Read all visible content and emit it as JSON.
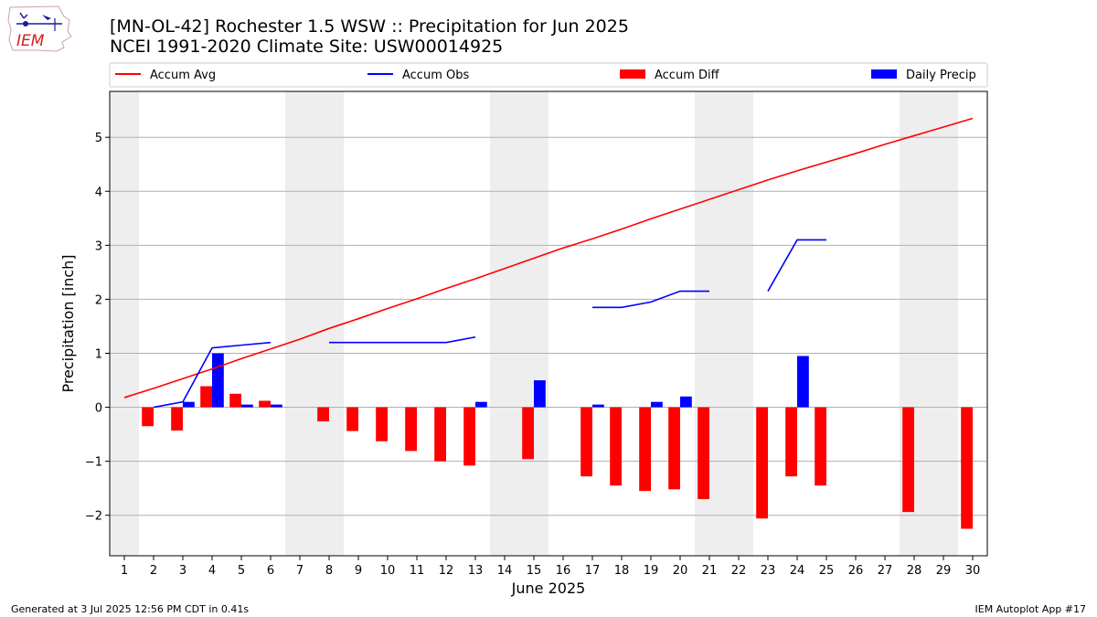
{
  "header": {
    "line1": "[MN-OL-42] Rochester 1.5 WSW :: Precipitation for Jun 2025",
    "line2": "NCEI 1991-2020 Climate Site: USW00014925"
  },
  "logo": {
    "text": "IEM"
  },
  "footer": {
    "generated": "Generated at 3 Jul 2025 12:56 PM CDT in 0.41s",
    "app": "IEM Autoplot App #17"
  },
  "chart_data": {
    "type": "bar",
    "xlabel": "June 2025",
    "ylabel": "Precipitation [inch]",
    "xlim": [
      0.5,
      30.5
    ],
    "ylim": [
      -2.75,
      5.85
    ],
    "yticks": [
      -2,
      -1,
      0,
      1,
      2,
      3,
      4,
      5
    ],
    "ytick_labels": [
      "−2",
      "−1",
      "0",
      "1",
      "2",
      "3",
      "4",
      "5"
    ],
    "days": [
      1,
      2,
      3,
      4,
      5,
      6,
      7,
      8,
      9,
      10,
      11,
      12,
      13,
      14,
      15,
      16,
      17,
      18,
      19,
      20,
      21,
      22,
      23,
      24,
      25,
      26,
      27,
      28,
      29,
      30
    ],
    "grid": true,
    "legend_position": "top",
    "weekend_shading": [
      [
        0.5,
        1.5
      ],
      [
        6.5,
        8.5
      ],
      [
        13.5,
        15.5
      ],
      [
        20.5,
        22.5
      ],
      [
        27.5,
        29.5
      ]
    ],
    "colors": {
      "avg": "#ff0000",
      "obs": "#0000ff",
      "diff": "#ff0000",
      "daily": "#0000ff",
      "shade": "#eeeeee",
      "grid": "#b0b0b0"
    },
    "legend": [
      {
        "key": "avg",
        "label": "Accum Avg",
        "kind": "line"
      },
      {
        "key": "obs",
        "label": "Accum Obs",
        "kind": "line"
      },
      {
        "key": "diff",
        "label": "Accum Diff",
        "kind": "bar"
      },
      {
        "key": "daily",
        "label": "Daily Precip",
        "kind": "bar"
      }
    ],
    "accum_avg": [
      0.18,
      0.35,
      0.53,
      0.71,
      0.9,
      1.08,
      1.26,
      1.46,
      1.64,
      1.83,
      2.01,
      2.2,
      2.38,
      2.57,
      2.76,
      2.95,
      3.12,
      3.3,
      3.49,
      3.67,
      3.85,
      4.03,
      4.21,
      4.38,
      4.54,
      4.7,
      4.87,
      5.03,
      5.19,
      5.35
    ],
    "accum_obs_segments": [
      [
        [
          2,
          0.0
        ],
        [
          3,
          0.1
        ],
        [
          4,
          1.1
        ],
        [
          5,
          1.15
        ],
        [
          6,
          1.2
        ]
      ],
      [
        [
          8,
          1.2
        ],
        [
          9,
          1.2
        ],
        [
          10,
          1.2
        ],
        [
          11,
          1.2
        ],
        [
          12,
          1.2
        ],
        [
          13,
          1.3
        ]
      ],
      [
        [
          17,
          1.85
        ],
        [
          18,
          1.85
        ],
        [
          19,
          1.95
        ],
        [
          20,
          2.15
        ],
        [
          21,
          2.15
        ]
      ],
      [
        [
          23,
          2.15
        ],
        [
          24,
          3.1
        ],
        [
          25,
          3.1
        ]
      ]
    ],
    "accum_diff": [
      [
        2,
        -0.35
      ],
      [
        3,
        -0.43
      ],
      [
        4,
        0.39
      ],
      [
        5,
        0.25
      ],
      [
        6,
        0.12
      ],
      [
        8,
        -0.26
      ],
      [
        9,
        -0.44
      ],
      [
        10,
        -0.63
      ],
      [
        11,
        -0.81
      ],
      [
        12,
        -1.0
      ],
      [
        13,
        -1.08
      ],
      [
        15,
        -0.96
      ],
      [
        17,
        -1.28
      ],
      [
        18,
        -1.45
      ],
      [
        19,
        -1.55
      ],
      [
        20,
        -1.52
      ],
      [
        21,
        -1.7
      ],
      [
        23,
        -2.06
      ],
      [
        24,
        -1.28
      ],
      [
        25,
        -1.45
      ],
      [
        28,
        -1.94
      ],
      [
        30,
        -2.25
      ]
    ],
    "daily_precip": [
      [
        3,
        0.1
      ],
      [
        4,
        1.0
      ],
      [
        5,
        0.05
      ],
      [
        6,
        0.05
      ],
      [
        13,
        0.1
      ],
      [
        15,
        0.5
      ],
      [
        17,
        0.05
      ],
      [
        19,
        0.1
      ],
      [
        20,
        0.2
      ],
      [
        24,
        0.95
      ]
    ]
  }
}
